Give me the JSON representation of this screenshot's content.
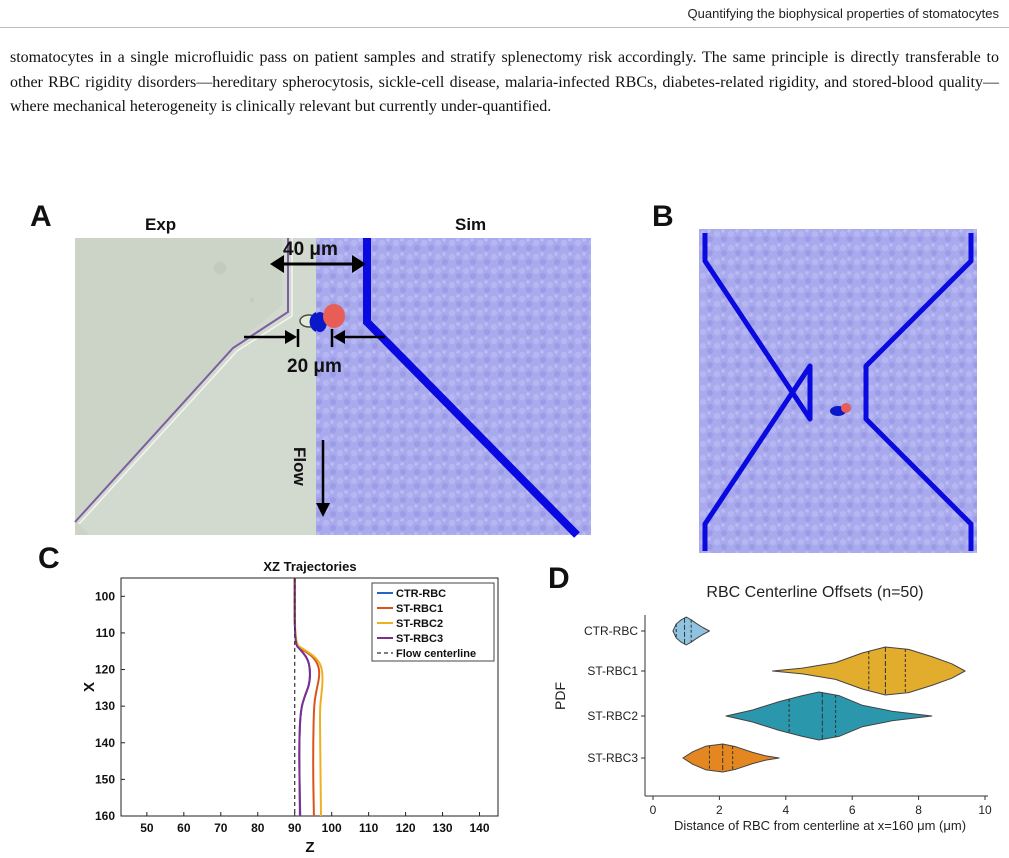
{
  "header": {
    "running_title": "Quantifying the biophysical properties of stomatocytes"
  },
  "body_text": "stomatocytes in a single microfluidic pass on patient samples and stratify splenectomy risk accordingly. The same principle is directly transferable to other RBC rigidity disorders—hereditary spherocytosis, sickle-cell disease, malaria-infected RBCs, diabetes-related rigidity, and stored-blood quality—where mechanical heterogeneity is clinically relevant but currently under-quantified.",
  "figure": {
    "panel_a": {
      "letter": "A",
      "label_exp": "Exp",
      "label_sim": "Sim",
      "dim_width": "40 μm",
      "dim_gap": "20 μm",
      "flow_label": "Flow"
    },
    "panel_b": {
      "letter": "B"
    },
    "panel_c": {
      "letter": "C"
    },
    "panel_d": {
      "letter": "D"
    }
  },
  "colors": {
    "ctr": "#2166c4",
    "st1": "#d9531e",
    "st2": "#edb120",
    "st3": "#7e2f8e",
    "violin_ctr": "#8fc3df",
    "violin_st1": "#e2ac2c",
    "violin_st2": "#2a97ad",
    "violin_st3": "#e58721",
    "channel": "#1010e0",
    "fluid": "#a7a7ec"
  },
  "chart_data": [
    {
      "type": "line",
      "title": "XZ Trajectories",
      "xlabel": "Z",
      "ylabel": "X",
      "xlim": [
        43,
        145
      ],
      "ylim": [
        95,
        160
      ],
      "y_inverted": true,
      "x_ticks": [
        50,
        60,
        70,
        80,
        90,
        100,
        110,
        120,
        130,
        140
      ],
      "y_ticks": [
        100,
        110,
        120,
        130,
        140,
        150,
        160
      ],
      "legend_position": "top-right",
      "series": [
        {
          "name": "CTR-RBC",
          "color": "#2166c4",
          "dash": false,
          "points": [
            [
              90,
              95
            ],
            [
              90,
              113
            ],
            [
              91.5,
              114.5
            ],
            [
              93.5,
              117
            ],
            [
              94.2,
              120
            ],
            [
              94,
              124
            ],
            [
              92.8,
              127
            ],
            [
              91.6,
              131
            ],
            [
              91.2,
              140
            ],
            [
              91.3,
              150
            ],
            [
              91.5,
              160
            ]
          ]
        },
        {
          "name": "ST-RBC1",
          "color": "#d9531e",
          "dash": false,
          "points": [
            [
              90,
              95
            ],
            [
              90,
              113
            ],
            [
              92,
              114.5
            ],
            [
              95,
              116.5
            ],
            [
              96.5,
              119
            ],
            [
              96.7,
              122
            ],
            [
              95.8,
              126
            ],
            [
              95.2,
              130
            ],
            [
              95,
              140
            ],
            [
              95,
              150
            ],
            [
              95.2,
              160
            ]
          ]
        },
        {
          "name": "ST-RBC2",
          "color": "#edb120",
          "dash": false,
          "points": [
            [
              90,
              95
            ],
            [
              90,
              113
            ],
            [
              92.5,
              114.5
            ],
            [
              95.5,
              116.5
            ],
            [
              97.3,
              119
            ],
            [
              97.6,
              123
            ],
            [
              97.2,
              127
            ],
            [
              96.8,
              131
            ],
            [
              96.9,
              140
            ],
            [
              97,
              150
            ],
            [
              97.1,
              160
            ]
          ]
        },
        {
          "name": "ST-RBC3",
          "color": "#7e2f8e",
          "dash": false,
          "points": [
            [
              90,
              95
            ],
            [
              90,
              113
            ],
            [
              91.5,
              114.5
            ],
            [
              93.5,
              117
            ],
            [
              94.2,
              120
            ],
            [
              94,
              124
            ],
            [
              92.8,
              127
            ],
            [
              91.6,
              131
            ],
            [
              91.2,
              140
            ],
            [
              91.3,
              150
            ],
            [
              91.4,
              160
            ]
          ]
        },
        {
          "name": "Flow centerline",
          "color": "#333333",
          "dash": true,
          "points": [
            [
              90,
              95
            ],
            [
              90,
              160
            ]
          ]
        }
      ]
    },
    {
      "type": "violin",
      "title": "RBC Centerline Offsets (n=50)",
      "xlabel": "Distance of RBC from centerline at x=160 μm (μm)",
      "ylabel": "PDF",
      "xlim": [
        0,
        10
      ],
      "x_ticks": [
        0,
        2,
        4,
        6,
        8,
        10
      ],
      "categories": [
        "CTR-RBC",
        "ST-RBC1",
        "ST-RBC2",
        "ST-RBC3"
      ],
      "violins": [
        {
          "name": "CTR-RBC",
          "color": "#8fc3df",
          "q1": 0.7,
          "median": 0.95,
          "q3": 1.15,
          "profile": [
            [
              0.6,
              0
            ],
            [
              0.7,
              0.5
            ],
            [
              0.85,
              0.8
            ],
            [
              1.0,
              1.0
            ],
            [
              1.15,
              0.8
            ],
            [
              1.3,
              0.55
            ],
            [
              1.5,
              0.25
            ],
            [
              1.7,
              0
            ]
          ]
        },
        {
          "name": "ST-RBC1",
          "color": "#e2ac2c",
          "q1": 6.5,
          "median": 7.0,
          "q3": 7.6,
          "profile": [
            [
              3.6,
              0
            ],
            [
              4.5,
              0.12
            ],
            [
              5.5,
              0.35
            ],
            [
              6.3,
              0.75
            ],
            [
              7.0,
              1.0
            ],
            [
              7.7,
              0.9
            ],
            [
              8.4,
              0.6
            ],
            [
              9.0,
              0.3
            ],
            [
              9.4,
              0
            ]
          ]
        },
        {
          "name": "ST-RBC2",
          "color": "#2a97ad",
          "q1": 4.1,
          "median": 5.1,
          "q3": 5.5,
          "profile": [
            [
              2.2,
              0
            ],
            [
              3.0,
              0.25
            ],
            [
              3.8,
              0.6
            ],
            [
              4.5,
              0.85
            ],
            [
              5.0,
              1.0
            ],
            [
              5.6,
              0.85
            ],
            [
              6.3,
              0.45
            ],
            [
              7.2,
              0.2
            ],
            [
              8.4,
              0
            ]
          ]
        },
        {
          "name": "ST-RBC3",
          "color": "#e58721",
          "q1": 1.7,
          "median": 2.1,
          "q3": 2.4,
          "profile": [
            [
              0.9,
              0
            ],
            [
              1.2,
              0.45
            ],
            [
              1.6,
              0.85
            ],
            [
              2.1,
              1.0
            ],
            [
              2.5,
              0.8
            ],
            [
              3.0,
              0.4
            ],
            [
              3.4,
              0.15
            ],
            [
              3.8,
              0
            ]
          ]
        }
      ]
    }
  ]
}
